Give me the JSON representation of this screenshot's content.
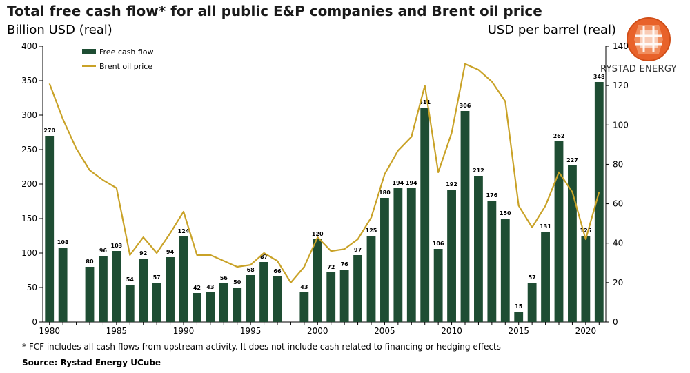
{
  "title": "Total free cash flow* for all public E&P companies and Brent oil price",
  "left_unit": "Billion USD (real)",
  "right_unit": "USD per barrel (real)",
  "footnote": "* FCF includes all cash flows from upstream activity. It does not include cash related to financing or hedging effects",
  "source": "Source: Rystad Energy UCube",
  "logo_text": "RYSTAD ENERGY",
  "colors": {
    "bar": "#1e4d33",
    "line": "#c9a227",
    "logo": "#e8622a"
  },
  "chart_data": {
    "type": "bar",
    "x": [
      1980,
      1981,
      1982,
      1983,
      1984,
      1985,
      1986,
      1987,
      1988,
      1989,
      1990,
      1991,
      1992,
      1993,
      1994,
      1995,
      1996,
      1997,
      1998,
      1999,
      2000,
      2001,
      2002,
      2003,
      2004,
      2005,
      2006,
      2007,
      2008,
      2009,
      2010,
      2011,
      2012,
      2013,
      2014,
      2015,
      2016,
      2017,
      2018,
      2019,
      2020,
      2021
    ],
    "x_tick_labels": [
      "1980",
      "1985",
      "1990",
      "1995",
      "2000",
      "2005",
      "2010",
      "2015",
      "2020"
    ],
    "series": [
      {
        "name": "Free cash flow",
        "type": "bar",
        "axis": "left",
        "values": [
          270,
          108,
          null,
          80,
          96,
          103,
          54,
          92,
          57,
          94,
          124,
          42,
          43,
          56,
          50,
          68,
          87,
          66,
          null,
          43,
          120,
          72,
          76,
          97,
          125,
          180,
          194,
          194,
          311,
          106,
          192,
          306,
          212,
          176,
          150,
          15,
          57,
          131,
          262,
          227,
          125,
          348
        ]
      },
      {
        "name": "Brent oil price",
        "type": "line",
        "axis": "right",
        "values": [
          121,
          103,
          88,
          77,
          72,
          68,
          34,
          43,
          35,
          45,
          56,
          34,
          34,
          31,
          28,
          29,
          35,
          31,
          20,
          28,
          43,
          36,
          37,
          42,
          53,
          75,
          87,
          94,
          120,
          76,
          96,
          131,
          128,
          122,
          112,
          59,
          48,
          59,
          76,
          66,
          42,
          66
        ]
      }
    ],
    "y_left": {
      "min": 0,
      "max": 400,
      "ticks": [
        0,
        50,
        100,
        150,
        200,
        250,
        300,
        350,
        400
      ]
    },
    "y_right": {
      "min": 0,
      "max": 140,
      "ticks": [
        0,
        20,
        40,
        60,
        80,
        100,
        120,
        140
      ]
    },
    "legend_position": "top-left",
    "grid": false
  }
}
